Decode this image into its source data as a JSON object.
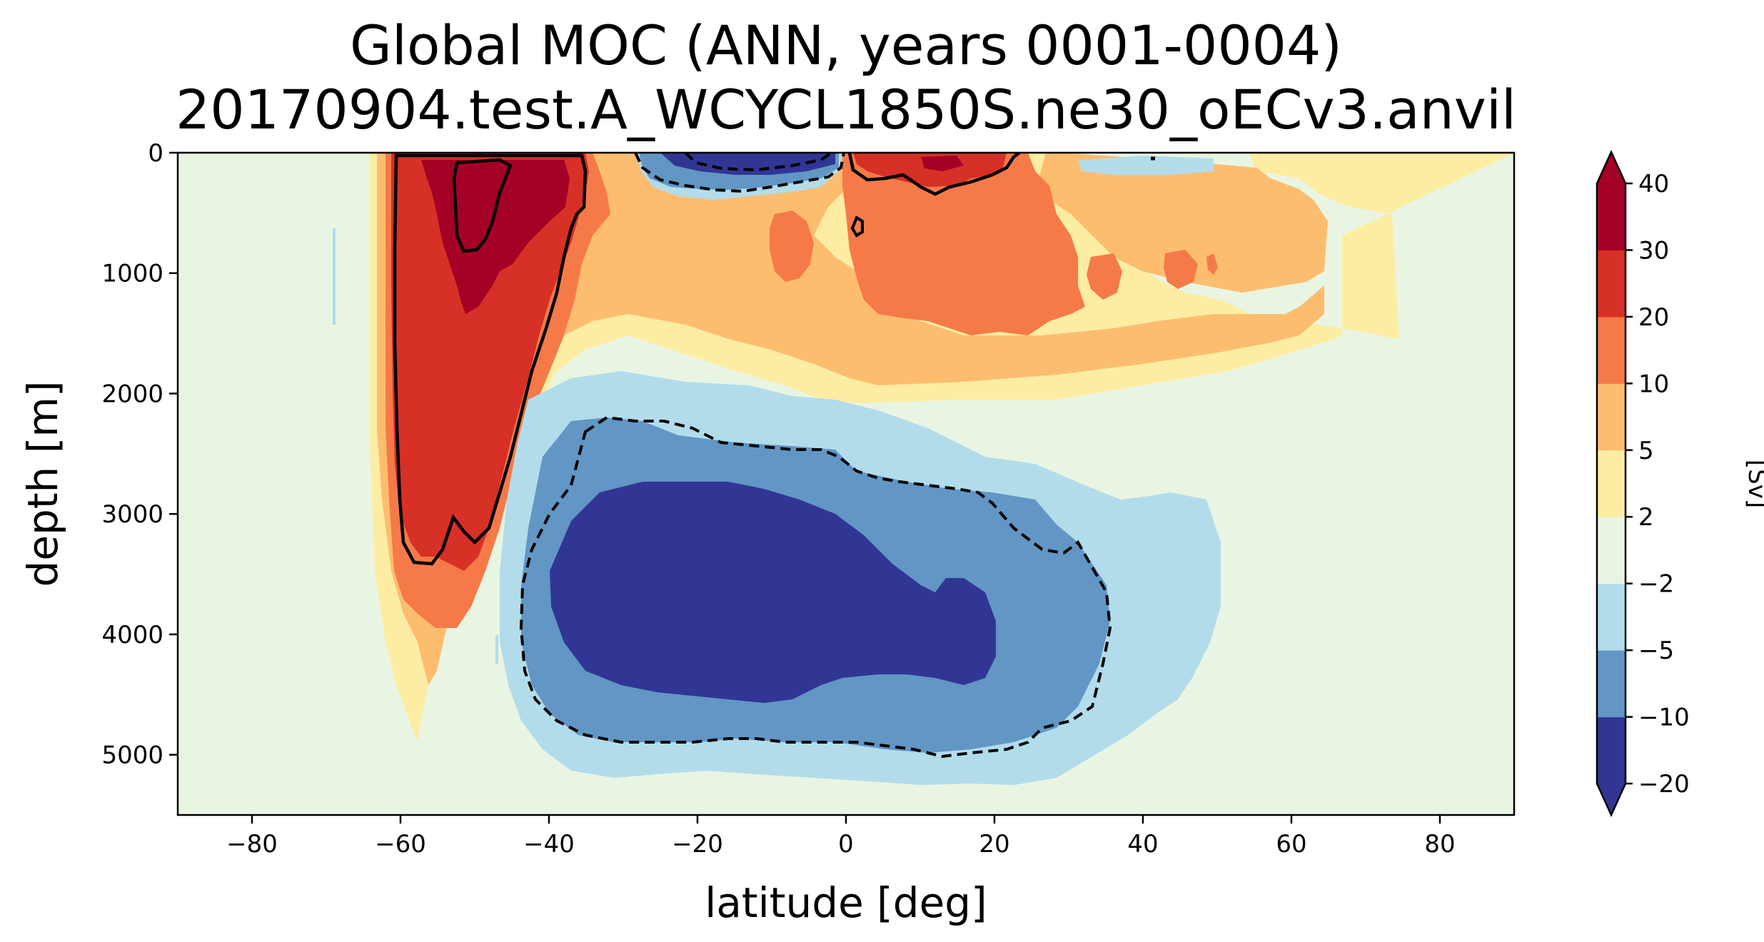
{
  "chart_data": {
    "type": "heatmap",
    "title_line1": "Global MOC (ANN, years 0001-0004)",
    "title_line2": "20170904.test.A_WCYCL1850S.ne30_oECv3.anvil",
    "xlabel": "latitude [deg]",
    "ylabel": "depth [m]",
    "xlim": [
      -90,
      90
    ],
    "ylim": [
      5500,
      0
    ],
    "xticks": [
      "−80",
      "−60",
      "−40",
      "−20",
      "0",
      "20",
      "40",
      "60",
      "80"
    ],
    "xtick_values": [
      -80,
      -60,
      -40,
      -20,
      0,
      20,
      40,
      60,
      80
    ],
    "yticks": [
      "0",
      "1000",
      "2000",
      "3000",
      "4000",
      "5000"
    ],
    "ytick_values": [
      0,
      1000,
      2000,
      3000,
      4000,
      5000
    ],
    "colorbar": {
      "label": "[Sv]",
      "levels": [
        "−20",
        "−10",
        "−5",
        "−2",
        "2",
        "5",
        "10",
        "20",
        "30",
        "40"
      ],
      "colors": [
        "#313695",
        "#6296c4",
        "#b3dceb",
        "#e9f5e3",
        "#fdeda3",
        "#fdbd6f",
        "#f57a48",
        "#d73027",
        "#a50026"
      ],
      "extend_low_color": "#313695",
      "extend_high_color": "#a50026"
    },
    "background_color": "#e9f5e3",
    "contour_lines": [
      {
        "level": 20,
        "style": "solid"
      },
      {
        "level": -10,
        "style": "dashed"
      }
    ]
  }
}
